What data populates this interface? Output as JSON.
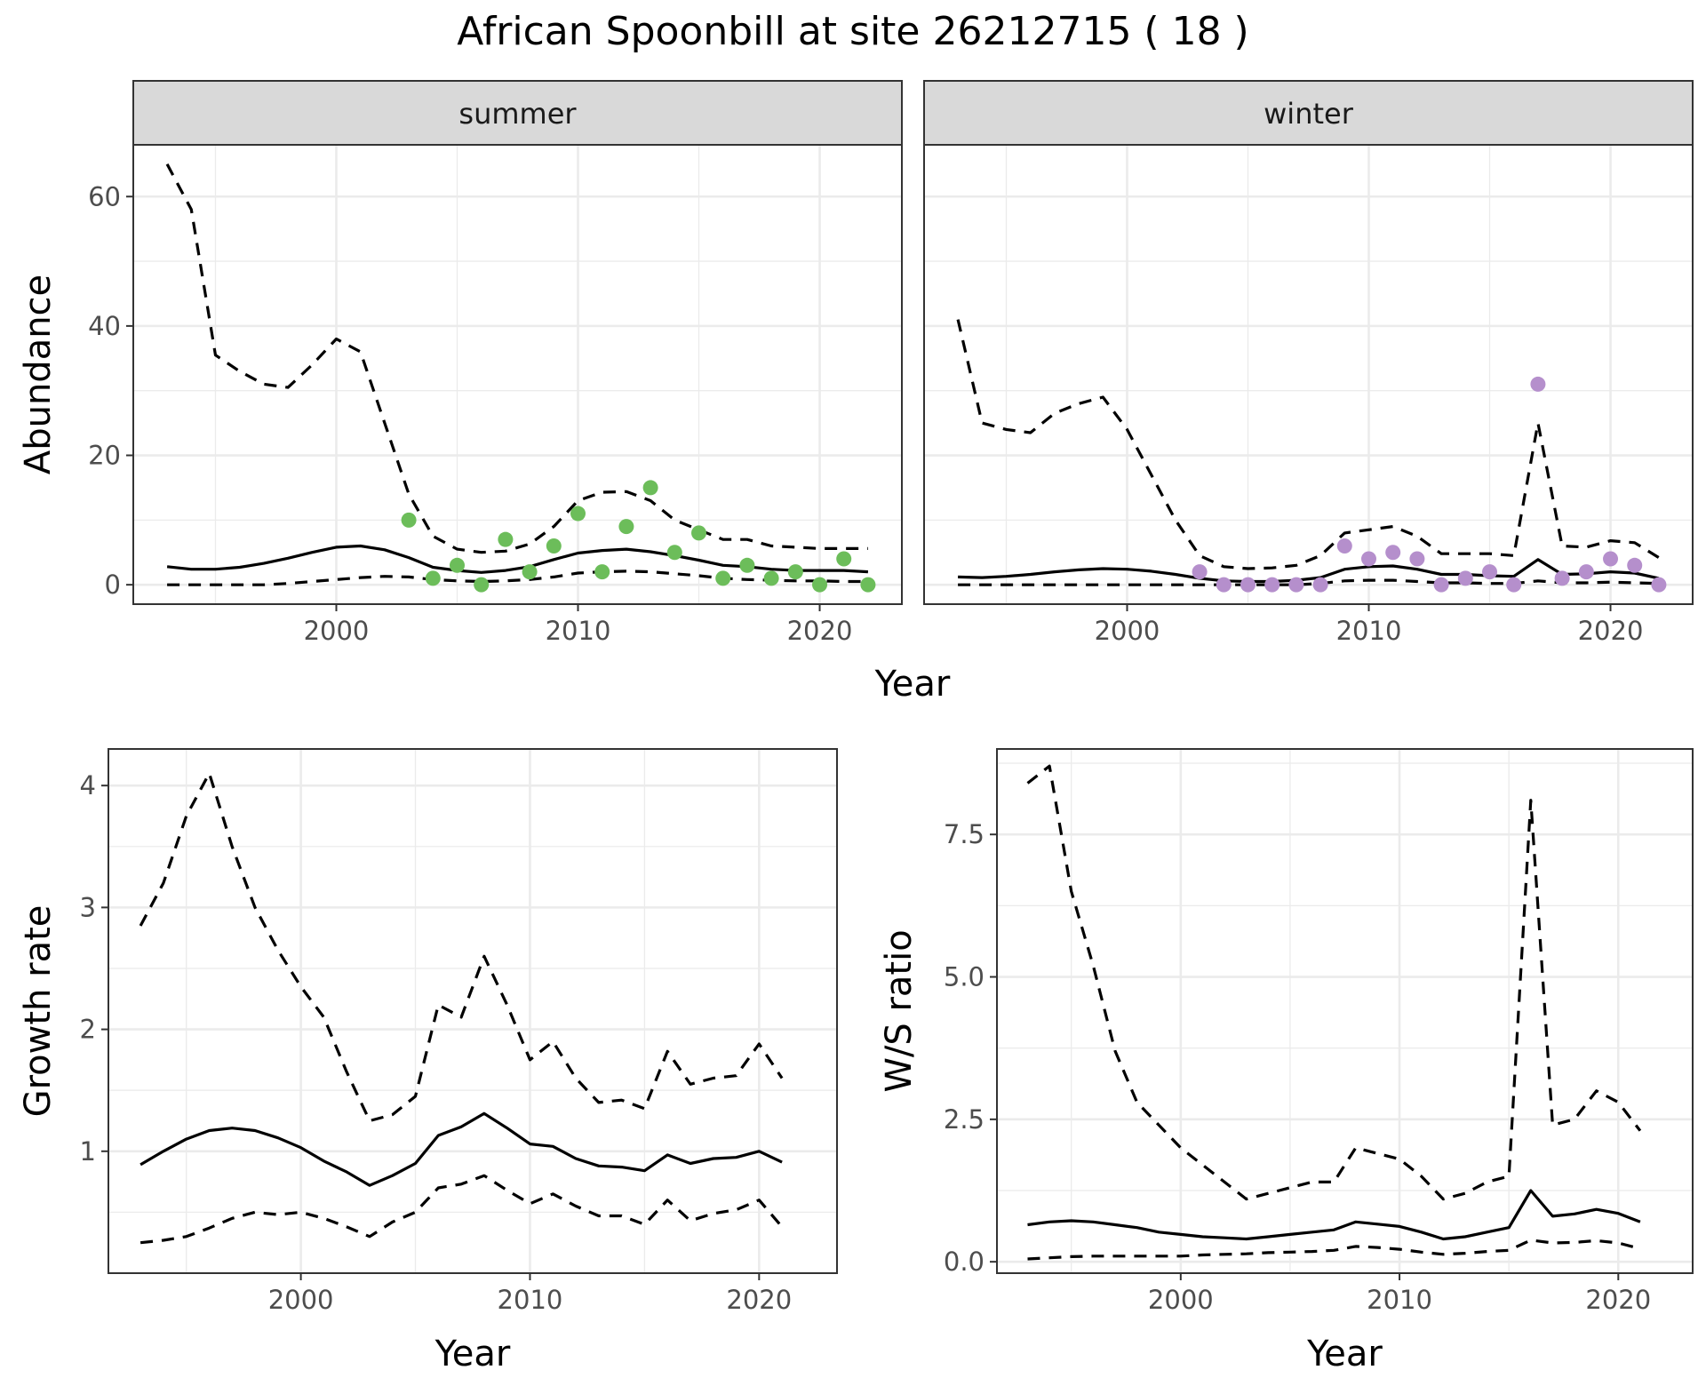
{
  "chart_data": {
    "title": "African Spoonbill at site 26212715 ( 18 )",
    "colors": {
      "summer_points": "#6cbd5a",
      "winter_points": "#b58fcc",
      "lines": "#000000",
      "strip": "#d9d9d9",
      "panel_border": "#333333",
      "grid": "#ebebeb"
    },
    "abundance": {
      "type": "line",
      "ylabel": "Abundance",
      "xlabel": "Year",
      "xlim": [
        1991.6,
        2023.4
      ],
      "ylim": [
        -3,
        68
      ],
      "xticks": [
        2000,
        2010,
        2020
      ],
      "yticks": [
        0,
        20,
        40,
        60
      ],
      "grid": true,
      "facets": [
        {
          "label": "summer",
          "point_color": "#6cbd5a",
          "x": [
            1993,
            1994,
            1995,
            1996,
            1997,
            1998,
            1999,
            2000,
            2001,
            2002,
            2003,
            2004,
            2005,
            2006,
            2007,
            2008,
            2009,
            2010,
            2011,
            2012,
            2013,
            2014,
            2015,
            2016,
            2017,
            2018,
            2019,
            2020,
            2021,
            2022
          ],
          "median": [
            2.8,
            2.4,
            2.4,
            2.7,
            3.3,
            4.1,
            5.0,
            5.8,
            6.0,
            5.4,
            4.2,
            2.7,
            2.2,
            1.9,
            2.2,
            2.8,
            3.9,
            4.9,
            5.3,
            5.5,
            5.1,
            4.5,
            3.8,
            3.0,
            2.8,
            2.4,
            2.2,
            2.2,
            2.2,
            2.0
          ],
          "upper": [
            65,
            58,
            35.5,
            33,
            31,
            30.5,
            34,
            38,
            36,
            25,
            14,
            7.5,
            5.5,
            5.0,
            5.2,
            6.3,
            9.0,
            13.0,
            14.3,
            14.4,
            13.0,
            10.0,
            8.5,
            7.0,
            7.0,
            6.0,
            5.8,
            5.6,
            5.6,
            5.6
          ],
          "lower": [
            0,
            0,
            0,
            0,
            0,
            0.2,
            0.5,
            0.8,
            1.1,
            1.3,
            1.2,
            0.8,
            0.6,
            0.5,
            0.6,
            0.8,
            1.2,
            1.8,
            2.0,
            2.1,
            2.0,
            1.7,
            1.4,
            1.0,
            0.8,
            0.7,
            0.6,
            0.6,
            0.5,
            0.5
          ],
          "obs_x": [
            2003,
            2004,
            2005,
            2006,
            2007,
            2008,
            2009,
            2010,
            2011,
            2012,
            2013,
            2014,
            2015,
            2016,
            2017,
            2018,
            2019,
            2020,
            2021,
            2022
          ],
          "obs_y": [
            10,
            1,
            3,
            0,
            7,
            2,
            6,
            11,
            2,
            9,
            15,
            5,
            8,
            1,
            3,
            1,
            2,
            0,
            4,
            0
          ]
        },
        {
          "label": "winter",
          "point_color": "#b58fcc",
          "x": [
            1993,
            1994,
            1995,
            1996,
            1997,
            1998,
            1999,
            2000,
            2001,
            2002,
            2003,
            2004,
            2005,
            2006,
            2007,
            2008,
            2009,
            2010,
            2011,
            2012,
            2013,
            2014,
            2015,
            2016,
            2017,
            2018,
            2019,
            2020,
            2021,
            2022
          ],
          "median": [
            1.2,
            1.1,
            1.3,
            1.6,
            2.0,
            2.3,
            2.5,
            2.4,
            2.1,
            1.6,
            1.0,
            0.6,
            0.5,
            0.5,
            0.7,
            1.1,
            2.4,
            2.8,
            2.9,
            2.4,
            1.6,
            1.6,
            1.4,
            1.3,
            3.9,
            1.6,
            1.7,
            2.0,
            1.8,
            1.0
          ],
          "upper": [
            41,
            25,
            24,
            23.5,
            26.5,
            28,
            29,
            24,
            17,
            10,
            4.5,
            2.8,
            2.5,
            2.6,
            3.0,
            4.5,
            8.0,
            8.5,
            9.0,
            7.5,
            4.8,
            4.8,
            4.8,
            4.5,
            25,
            6,
            5.8,
            6.8,
            6.5,
            4.2
          ],
          "lower": [
            0,
            0,
            0,
            0,
            0,
            0,
            0,
            0,
            0,
            0,
            0,
            0,
            0,
            0,
            0,
            0.2,
            0.6,
            0.7,
            0.7,
            0.5,
            0.3,
            0.3,
            0.2,
            0.2,
            0.6,
            0.3,
            0.3,
            0.4,
            0.3,
            0.2
          ],
          "obs_x": [
            2003,
            2004,
            2005,
            2006,
            2007,
            2008,
            2009,
            2010,
            2011,
            2012,
            2013,
            2014,
            2015,
            2016,
            2017,
            2018,
            2019,
            2020,
            2021,
            2022
          ],
          "obs_y": [
            2,
            0,
            0,
            0,
            0,
            0,
            6,
            4,
            5,
            4,
            0,
            1,
            2,
            0,
            31,
            1,
            2,
            4,
            3,
            0
          ]
        }
      ]
    },
    "growth_rate": {
      "type": "line",
      "ylabel": "Growth rate",
      "xlabel": "Year",
      "xlim": [
        1991.6,
        2023.4
      ],
      "ylim": [
        0.0,
        4.3
      ],
      "xticks": [
        2000,
        2010,
        2020
      ],
      "yticks": [
        1,
        2,
        3,
        4
      ],
      "grid": true,
      "x": [
        1993,
        1994,
        1995,
        1996,
        1997,
        1998,
        1999,
        2000,
        2001,
        2002,
        2003,
        2004,
        2005,
        2006,
        2007,
        2008,
        2009,
        2010,
        2011,
        2012,
        2013,
        2014,
        2015,
        2016,
        2017,
        2018,
        2019,
        2020,
        2021
      ],
      "median": [
        0.89,
        1.0,
        1.1,
        1.17,
        1.19,
        1.17,
        1.11,
        1.03,
        0.92,
        0.83,
        0.72,
        0.8,
        0.9,
        1.13,
        1.2,
        1.31,
        1.19,
        1.06,
        1.04,
        0.94,
        0.88,
        0.87,
        0.84,
        0.97,
        0.9,
        0.94,
        0.95,
        1.0,
        0.91
      ],
      "upper": [
        2.85,
        3.2,
        3.75,
        4.1,
        3.5,
        3.0,
        2.65,
        2.35,
        2.1,
        1.65,
        1.25,
        1.3,
        1.45,
        2.2,
        2.1,
        2.6,
        2.2,
        1.75,
        1.9,
        1.6,
        1.4,
        1.42,
        1.35,
        1.82,
        1.55,
        1.6,
        1.62,
        1.88,
        1.6
      ],
      "lower": [
        0.25,
        0.27,
        0.3,
        0.37,
        0.45,
        0.5,
        0.48,
        0.5,
        0.45,
        0.38,
        0.3,
        0.42,
        0.5,
        0.7,
        0.73,
        0.8,
        0.68,
        0.57,
        0.65,
        0.55,
        0.47,
        0.47,
        0.4,
        0.6,
        0.43,
        0.49,
        0.52,
        0.6,
        0.38
      ]
    },
    "ws_ratio": {
      "type": "line",
      "ylabel": "W/S ratio",
      "xlabel": "Year",
      "xlim": [
        1991.6,
        2023.4
      ],
      "ylim": [
        -0.2,
        9.0
      ],
      "xticks": [
        2000,
        2010,
        2020
      ],
      "yticks": [
        0.0,
        2.5,
        5.0,
        7.5
      ],
      "ytick_labels": [
        "0.0",
        "2.5",
        "5.0",
        "7.5"
      ],
      "grid": true,
      "x": [
        1993,
        1994,
        1995,
        1996,
        1997,
        1998,
        1999,
        2000,
        2001,
        2002,
        2003,
        2004,
        2005,
        2006,
        2007,
        2008,
        2009,
        2010,
        2011,
        2012,
        2013,
        2014,
        2015,
        2016,
        2017,
        2018,
        2019,
        2020,
        2021
      ],
      "median": [
        0.65,
        0.7,
        0.72,
        0.7,
        0.65,
        0.6,
        0.52,
        0.48,
        0.44,
        0.42,
        0.4,
        0.44,
        0.48,
        0.52,
        0.56,
        0.7,
        0.66,
        0.62,
        0.52,
        0.4,
        0.44,
        0.52,
        0.6,
        1.25,
        0.8,
        0.84,
        0.92,
        0.85,
        0.7
      ],
      "upper": [
        8.4,
        8.7,
        6.5,
        5.2,
        3.7,
        2.8,
        2.4,
        2.0,
        1.7,
        1.4,
        1.1,
        1.2,
        1.3,
        1.4,
        1.4,
        2.0,
        1.9,
        1.8,
        1.5,
        1.1,
        1.2,
        1.4,
        1.5,
        8.1,
        2.4,
        2.5,
        3.0,
        2.8,
        2.3
      ],
      "lower": [
        0.05,
        0.07,
        0.09,
        0.1,
        0.1,
        0.1,
        0.1,
        0.1,
        0.12,
        0.13,
        0.14,
        0.16,
        0.17,
        0.18,
        0.2,
        0.27,
        0.25,
        0.22,
        0.17,
        0.13,
        0.15,
        0.18,
        0.2,
        0.38,
        0.33,
        0.34,
        0.37,
        0.33,
        0.23
      ]
    }
  }
}
